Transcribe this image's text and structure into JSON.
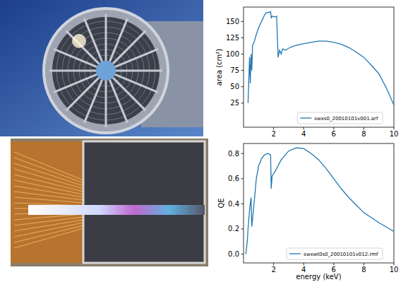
{
  "chart_data": [
    {
      "type": "line",
      "y_label": "area (cm²)",
      "x": [
        0.3,
        0.35,
        0.4,
        0.45,
        0.5,
        0.55,
        0.6,
        0.7,
        0.85,
        1.0,
        1.2,
        1.3,
        1.4,
        1.5,
        1.7,
        1.8,
        1.85,
        1.9,
        2.1,
        2.2,
        2.3,
        2.4,
        2.5,
        2.6,
        2.8,
        3.0,
        3.3,
        3.8,
        4.5,
        5.0,
        5.5,
        6.0,
        6.5,
        7.0,
        7.5,
        8.0,
        8.5,
        9.0,
        9.5,
        10.0
      ],
      "series": [
        {
          "name": "swxs0_20010101v001.arf",
          "color": "#1f77b4",
          "values": [
            25,
            60,
            95,
            55,
            100,
            75,
            113,
            118,
            130,
            140,
            150,
            155,
            160,
            163,
            164,
            165,
            155,
            158,
            157,
            158,
            95,
            106,
            100,
            108,
            106,
            109,
            112,
            115,
            118,
            120,
            120,
            118,
            115,
            110,
            103,
            95,
            83,
            70,
            48,
            22
          ]
        }
      ],
      "xlim": [
        0,
        10
      ],
      "ylim": [
        -12,
        172
      ],
      "xticks": [
        2,
        4,
        6,
        8,
        10
      ],
      "yticks": [
        25,
        50,
        75,
        100,
        125,
        150
      ],
      "legend": "lower right",
      "grid": false
    },
    {
      "type": "line",
      "y_label": "QE",
      "x_label": "energy (keV)",
      "x": [
        0.15,
        0.25,
        0.3,
        0.4,
        0.45,
        0.5,
        0.55,
        0.7,
        0.85,
        1.0,
        1.2,
        1.4,
        1.6,
        1.8,
        1.84,
        1.9,
        2.2,
        2.5,
        3.0,
        3.5,
        4.0,
        4.5,
        5.0,
        5.5,
        6.0,
        6.5,
        7.0,
        7.5,
        8.0,
        9.0,
        10.0
      ],
      "series": [
        {
          "name": "swxwt0s0_20010101v012.rmf",
          "color": "#1f77b4",
          "values": [
            0.0,
            0.1,
            0.2,
            0.35,
            0.4,
            0.45,
            0.22,
            0.4,
            0.6,
            0.7,
            0.76,
            0.79,
            0.8,
            0.79,
            0.52,
            0.62,
            0.68,
            0.75,
            0.82,
            0.845,
            0.84,
            0.8,
            0.75,
            0.68,
            0.6,
            0.52,
            0.45,
            0.39,
            0.33,
            0.25,
            0.18
          ]
        }
      ],
      "xlim": [
        0,
        10
      ],
      "ylim": [
        -0.07,
        0.88
      ],
      "xticks": [
        2,
        4,
        6,
        8,
        10
      ],
      "yticks": [
        {
          "value": 0,
          "label": "0.0"
        },
        0.2,
        0.4,
        0.6,
        0.8
      ],
      "legend": "lower right",
      "grid": false
    }
  ]
}
